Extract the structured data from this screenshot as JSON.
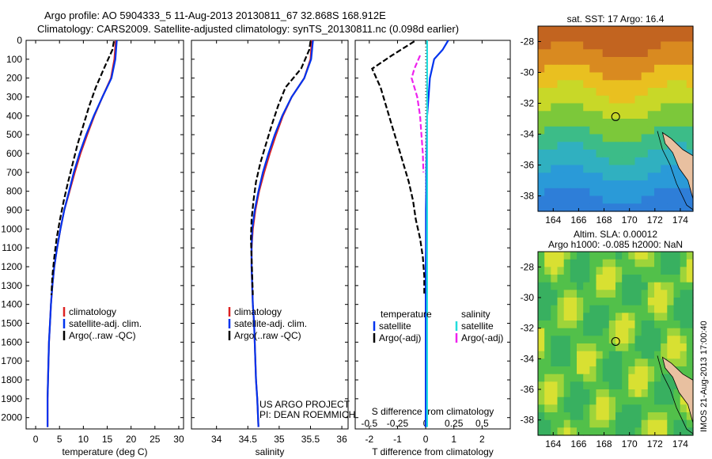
{
  "header": {
    "line1": "Argo profile: AO 5904333_5 11-Aug-2013 20130811_67 32.868S 168.912E",
    "line2": "Climatology: CARS2009. Satellite-adjusted climatology: synTS_20130811.nc (0.098d earlier)"
  },
  "colors": {
    "climatology": "#dd2222",
    "satellite": "#0033ee",
    "argo": "#000000",
    "satellite_salinity": "#22dddd",
    "argo_adj_salinity": "#ee22ee"
  },
  "chart_data": [
    {
      "type": "line",
      "id": "temperature",
      "xlabel": "temperature (deg C)",
      "xlim": [
        -2,
        31
      ],
      "ylim": [
        0,
        2060
      ],
      "y_reversed": true,
      "xticks": [
        0,
        5,
        10,
        15,
        20,
        25,
        30
      ],
      "yticks": [
        0,
        100,
        200,
        300,
        400,
        500,
        600,
        700,
        800,
        900,
        1000,
        1100,
        1200,
        1300,
        1400,
        1500,
        1600,
        1700,
        1800,
        1900,
        2000
      ],
      "legend": [
        "climatology",
        "satellite-adj. clim.",
        "Argo(..raw -QC)"
      ],
      "series": [
        {
          "name": "climatology",
          "x": [
            16.8,
            16.5,
            15.8,
            14.0,
            12.3,
            10.8,
            9.4,
            8.2,
            7.1,
            6.0,
            5.2,
            4.5,
            3.9,
            3.5,
            3.2,
            3.0,
            2.8,
            2.7,
            2.6,
            2.5,
            2.5
          ],
          "y": [
            0,
            100,
            200,
            300,
            400,
            500,
            600,
            700,
            800,
            900,
            1000,
            1100,
            1200,
            1300,
            1400,
            1500,
            1600,
            1700,
            1800,
            1900,
            2050
          ]
        },
        {
          "name": "satellite-adj. clim.",
          "x": [
            17.0,
            16.7,
            15.9,
            14.0,
            12.2,
            10.6,
            9.2,
            8.0,
            7.0,
            6.0,
            5.2,
            4.5,
            3.9,
            3.5,
            3.2,
            3.0,
            2.8,
            2.7,
            2.6,
            2.5,
            2.5
          ],
          "y": [
            0,
            100,
            200,
            300,
            400,
            500,
            600,
            700,
            800,
            900,
            1000,
            1100,
            1200,
            1300,
            1400,
            1500,
            1600,
            1700,
            1800,
            1900,
            2050
          ]
        },
        {
          "name": "Argo(..raw -QC)",
          "x": [
            16.4,
            16.1,
            14.3,
            12.6,
            11.2,
            10.0,
            8.8,
            7.8,
            6.8,
            5.9,
            5.1,
            4.4,
            3.9,
            3.5,
            3.3
          ],
          "y": [
            5,
            50,
            150,
            250,
            350,
            450,
            550,
            650,
            750,
            850,
            950,
            1050,
            1150,
            1250,
            1350
          ]
        }
      ]
    },
    {
      "type": "line",
      "id": "salinity",
      "xlabel": "salinity",
      "xlim": [
        33.6,
        36.1
      ],
      "ylim": [
        0,
        2060
      ],
      "y_reversed": true,
      "xticks": [
        34,
        34.5,
        35,
        35.5,
        36
      ],
      "legend": [
        "climatology",
        "satellite-adj. clim.",
        "Argo(..raw -QC)"
      ],
      "annotation": [
        "US ARGO PROJECT",
        "PI: DEAN ROEMMICH"
      ],
      "series": [
        {
          "name": "climatology",
          "x": [
            35.52,
            35.5,
            35.4,
            35.2,
            35.06,
            34.95,
            34.85,
            34.76,
            34.68,
            34.62,
            34.58,
            34.56,
            34.56,
            34.57,
            34.58,
            34.6,
            34.61,
            34.62,
            34.63,
            34.65,
            34.67
          ],
          "y": [
            0,
            100,
            200,
            300,
            400,
            500,
            600,
            700,
            800,
            900,
            1000,
            1100,
            1200,
            1300,
            1400,
            1500,
            1600,
            1700,
            1800,
            1900,
            2050
          ]
        },
        {
          "name": "satellite-adj. clim.",
          "x": [
            35.54,
            35.51,
            35.4,
            35.2,
            35.05,
            34.93,
            34.83,
            34.74,
            34.67,
            34.61,
            34.57,
            34.56,
            34.56,
            34.57,
            34.58,
            34.6,
            34.61,
            34.62,
            34.63,
            34.65,
            34.67
          ],
          "y": [
            0,
            100,
            200,
            300,
            400,
            500,
            600,
            700,
            800,
            900,
            1000,
            1100,
            1200,
            1300,
            1400,
            1500,
            1600,
            1700,
            1800,
            1900,
            2050
          ]
        },
        {
          "name": "Argo(..raw -QC)",
          "x": [
            35.5,
            35.48,
            35.35,
            35.1,
            34.98,
            34.88,
            34.79,
            34.7,
            34.63,
            34.59,
            34.56,
            34.55,
            34.56,
            34.57,
            34.58
          ],
          "y": [
            5,
            50,
            150,
            250,
            350,
            450,
            550,
            650,
            750,
            850,
            950,
            1050,
            1150,
            1250,
            1350
          ]
        }
      ]
    },
    {
      "type": "line",
      "id": "difference",
      "xlabel": "T difference from climatology",
      "xlabel_top": "S difference from climatology",
      "xlim": [
        -2.5,
        3
      ],
      "ylim": [
        0,
        2060
      ],
      "y_reversed": true,
      "xticks": [
        -2,
        -1,
        0,
        1,
        2
      ],
      "s_ticks": [
        [
          "-0.5",
          -2
        ],
        [
          "-0.25",
          -1
        ],
        [
          "0",
          0
        ],
        [
          "0.25",
          1
        ],
        [
          "0.5",
          2
        ]
      ],
      "legend": {
        "temperature": "temperature",
        "salinity": "salinity",
        "items": [
          "satellite",
          "Argo(-adj)",
          "satellite",
          "Argo(-adj)"
        ]
      },
      "series": [
        {
          "name": "temperature satellite",
          "x": [
            0.8,
            0.6,
            0.3,
            0.15,
            0.1,
            0.05,
            0.04,
            0.03,
            0.02,
            0.02,
            0.01,
            0.01,
            0.01,
            0.0,
            0.0,
            0.0,
            0.0,
            0.0,
            0.0,
            0.0
          ],
          "y": [
            0,
            50,
            100,
            200,
            300,
            400,
            500,
            600,
            700,
            800,
            900,
            1000,
            1100,
            1200,
            1300,
            1400,
            1500,
            1600,
            1800,
            2050
          ]
        },
        {
          "name": "temperature Argo(-adj)",
          "x": [
            -0.4,
            -1.2,
            -1.9,
            -1.6,
            -1.4,
            -1.2,
            -1.0,
            -0.8,
            -0.6,
            -0.45,
            -0.35,
            -0.2,
            -0.1,
            -0.05,
            -0.05
          ],
          "y": [
            5,
            80,
            150,
            250,
            350,
            450,
            550,
            650,
            750,
            850,
            950,
            1050,
            1150,
            1250,
            1350
          ]
        },
        {
          "name": "salinity satellite",
          "x": [
            0.05,
            0.05,
            0.05,
            0.05,
            0.05,
            0.05,
            0.05,
            0.05,
            0.05
          ],
          "y": [
            0,
            200,
            400,
            600,
            800,
            1000,
            1400,
            1800,
            2050
          ]
        },
        {
          "name": "salinity Argo(-adj)",
          "x": [
            -0.2,
            -0.4,
            -0.5,
            -0.3,
            -0.2,
            -0.15,
            -0.1,
            -0.08
          ],
          "y": [
            80,
            150,
            200,
            300,
            400,
            500,
            600,
            700
          ]
        }
      ]
    },
    {
      "type": "heatmap",
      "id": "sst_map",
      "title": "sat. SST: 17 Argo: 16.4",
      "xlim": [
        162.8,
        175
      ],
      "ylim": [
        -39,
        -27
      ],
      "xticks": [
        164,
        166,
        168,
        170,
        172,
        174
      ],
      "yticks": [
        -28,
        -30,
        -32,
        -34,
        -36,
        -38
      ],
      "marker": {
        "lon": 168.912,
        "lat": -32.868
      }
    },
    {
      "type": "heatmap",
      "id": "sla_map",
      "title": "Altim. SLA: 0.00012",
      "subtitle": "Argo h1000: -0.085 h2000: NaN",
      "xlim": [
        162.8,
        175
      ],
      "ylim": [
        -39,
        -27
      ],
      "xticks": [
        164,
        166,
        168,
        170,
        172,
        174
      ],
      "yticks": [
        -28,
        -30,
        -32,
        -34,
        -36,
        -38
      ],
      "marker": {
        "lon": 168.912,
        "lat": -32.868
      }
    }
  ],
  "footer": {
    "imos_stamp": "IMOS 21-Aug-2013 17:00:40"
  }
}
